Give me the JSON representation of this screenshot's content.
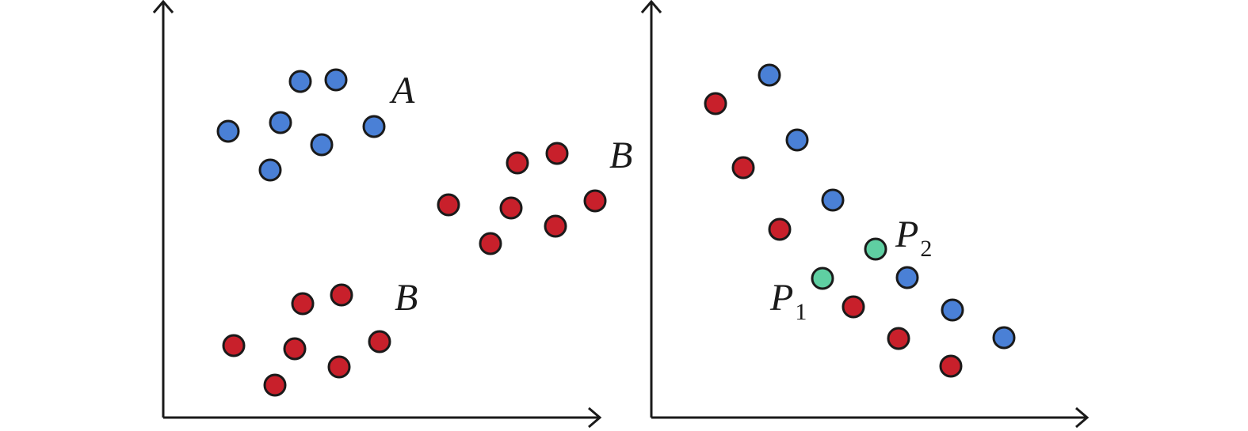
{
  "panels": [
    {
      "labels": [
        "A",
        "B",
        "B"
      ]
    },
    {
      "labels": [
        {
          "main": "P",
          "sub": "1"
        },
        {
          "main": "P",
          "sub": "2"
        }
      ]
    }
  ]
}
